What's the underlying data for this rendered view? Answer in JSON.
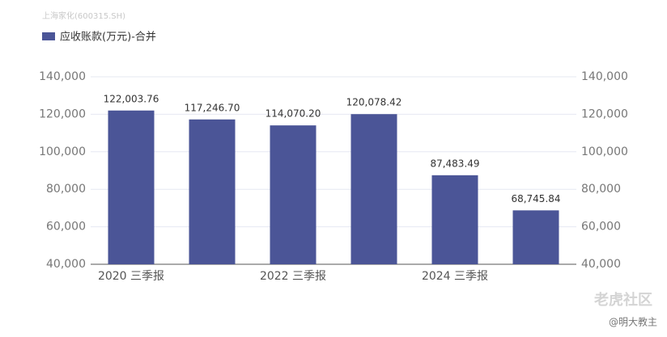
{
  "chart_data": {
    "type": "bar",
    "subtitle": "上海家化(600315.SH)",
    "categories": [
      "2020 三季报",
      null,
      "2022 三季报",
      null,
      "2024 三季报",
      null
    ],
    "series": [
      {
        "name": "应收账款(万元)-合并",
        "color": "#4b5597",
        "values": [
          122003.76,
          117246.7,
          114070.2,
          120078.42,
          87483.49,
          68745.84
        ],
        "value_labels": [
          "122,003.76",
          "117,246.70",
          "114,070.20",
          "120,078.42",
          "87,483.49",
          "68,745.84"
        ]
      }
    ],
    "ylim": [
      40000,
      140000
    ],
    "yticks": [
      {
        "value": 40000,
        "label": "40,000"
      },
      {
        "value": 60000,
        "label": "60,000"
      },
      {
        "value": 80000,
        "label": "80,000"
      },
      {
        "value": 100000,
        "label": "100,000"
      },
      {
        "value": 120000,
        "label": "120,000"
      },
      {
        "value": 140000,
        "label": "140,000"
      }
    ],
    "grid": true,
    "legend": "top-left",
    "annotations": [
      "老虎社区",
      "@明大教主"
    ]
  }
}
